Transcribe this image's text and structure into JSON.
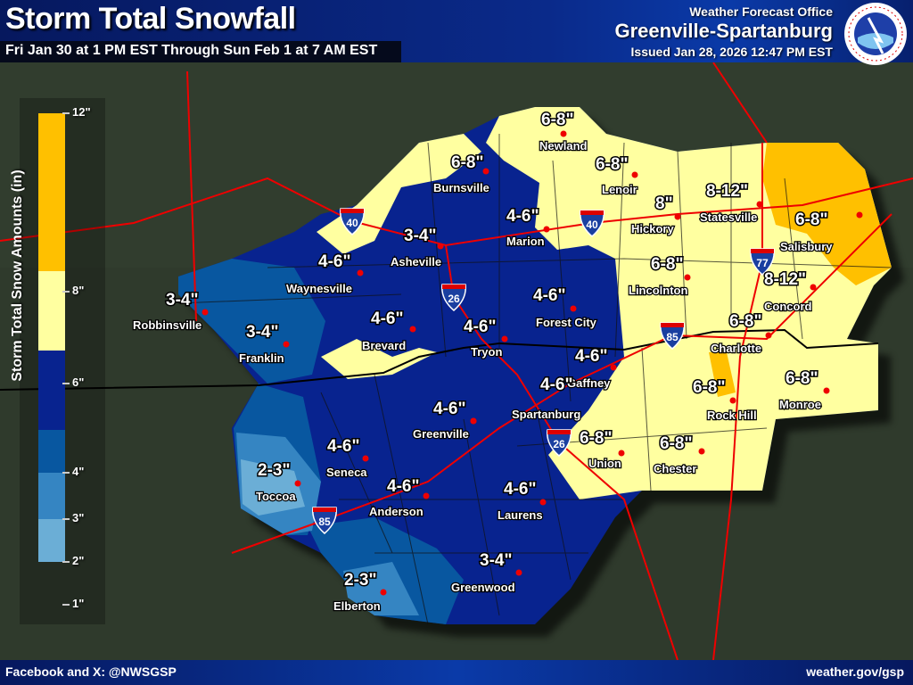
{
  "header": {
    "title": "Storm Total Snowfall",
    "subtitle": "Fri Jan 30 at 1 PM EST Through Sun Feb 1 at 7 AM EST",
    "office_line1": "Weather Forecast Office",
    "office_name": "Greenville-Spartanburg",
    "issued": "Issued Jan 28, 2026 12:47 PM EST",
    "logo_text": "NATIONAL WEATHER SERVICE"
  },
  "legend": {
    "title": "Storm Total Snow Amounts (in)",
    "ticks": [
      "12\"",
      "8\"",
      "6\"",
      "4\"",
      "3\"",
      "2\"",
      "1\""
    ],
    "bins": [
      {
        "range": "8-12",
        "color": "#ffc000"
      },
      {
        "range": "6-8",
        "color": "#ffffa0"
      },
      {
        "range": "4-6",
        "color": "#08238f"
      },
      {
        "range": "3-4",
        "color": "#0857a0"
      },
      {
        "range": "2-3",
        "color": "#3585c2"
      },
      {
        "range": "1-2",
        "color": "#6baed6"
      }
    ]
  },
  "cities": [
    {
      "name": "Newland",
      "amount": "6-8\""
    },
    {
      "name": "Burnsville",
      "amount": "6-8\""
    },
    {
      "name": "Lenoir",
      "amount": "6-8\""
    },
    {
      "name": "Marion",
      "amount": "4-6\""
    },
    {
      "name": "Hickory",
      "amount": "8\""
    },
    {
      "name": "Statesville",
      "amount": "8-12\""
    },
    {
      "name": "Salisbury",
      "amount": "6-8\""
    },
    {
      "name": "Asheville",
      "amount": "3-4\""
    },
    {
      "name": "Waynesville",
      "amount": "4-6\""
    },
    {
      "name": "Lincolnton",
      "amount": "6-8\""
    },
    {
      "name": "Concord",
      "amount": "8-12\""
    },
    {
      "name": "Robbinsville",
      "amount": "3-4\""
    },
    {
      "name": "Brevard",
      "amount": "4-6\""
    },
    {
      "name": "Forest City",
      "amount": "4-6\""
    },
    {
      "name": "Franklin",
      "amount": "3-4\""
    },
    {
      "name": "Tryon",
      "amount": "4-6\""
    },
    {
      "name": "Charlotte",
      "amount": "6-8\""
    },
    {
      "name": "Gaffney",
      "amount": "4-6\""
    },
    {
      "name": "Spartanburg",
      "amount": "4-6\""
    },
    {
      "name": "Rock Hill",
      "amount": "6-8\""
    },
    {
      "name": "Monroe",
      "amount": "6-8\""
    },
    {
      "name": "Greenville",
      "amount": "4-6\""
    },
    {
      "name": "Union",
      "amount": "6-8\""
    },
    {
      "name": "Chester",
      "amount": "6-8\""
    },
    {
      "name": "Seneca",
      "amount": "4-6\""
    },
    {
      "name": "Toccoa",
      "amount": "2-3\""
    },
    {
      "name": "Anderson",
      "amount": "4-6\""
    },
    {
      "name": "Laurens",
      "amount": "4-6\""
    },
    {
      "name": "Greenwood",
      "amount": "3-4\""
    },
    {
      "name": "Elberton",
      "amount": "2-3\""
    }
  ],
  "interstates": [
    "40",
    "40",
    "26",
    "85",
    "77",
    "26",
    "85"
  ],
  "footer": {
    "social": "Facebook and X: @NWSGSP",
    "website": "weather.gov/gsp"
  }
}
